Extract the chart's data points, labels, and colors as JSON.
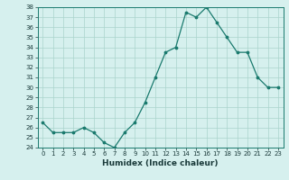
{
  "x": [
    0,
    1,
    2,
    3,
    4,
    5,
    6,
    7,
    8,
    9,
    10,
    11,
    12,
    13,
    14,
    15,
    16,
    17,
    18,
    19,
    20,
    21,
    22,
    23
  ],
  "y": [
    26.5,
    25.5,
    25.5,
    25.5,
    26.0,
    25.5,
    24.5,
    24.0,
    25.5,
    26.5,
    28.5,
    31.0,
    33.5,
    34.0,
    37.5,
    37.0,
    38.0,
    36.5,
    35.0,
    33.5,
    33.5,
    31.0,
    30.0,
    30.0
  ],
  "xlim": [
    -0.5,
    23.5
  ],
  "ylim": [
    24,
    38
  ],
  "yticks": [
    24,
    25,
    26,
    27,
    28,
    29,
    30,
    31,
    32,
    33,
    34,
    35,
    36,
    37,
    38
  ],
  "xticks": [
    0,
    1,
    2,
    3,
    4,
    5,
    6,
    7,
    8,
    9,
    10,
    11,
    12,
    13,
    14,
    15,
    16,
    17,
    18,
    19,
    20,
    21,
    22,
    23
  ],
  "xlabel": "Humidex (Indice chaleur)",
  "line_color": "#1a7a6e",
  "marker_color": "#1a7a6e",
  "bg_color": "#d6f0ee",
  "grid_color": "#aad4cc"
}
